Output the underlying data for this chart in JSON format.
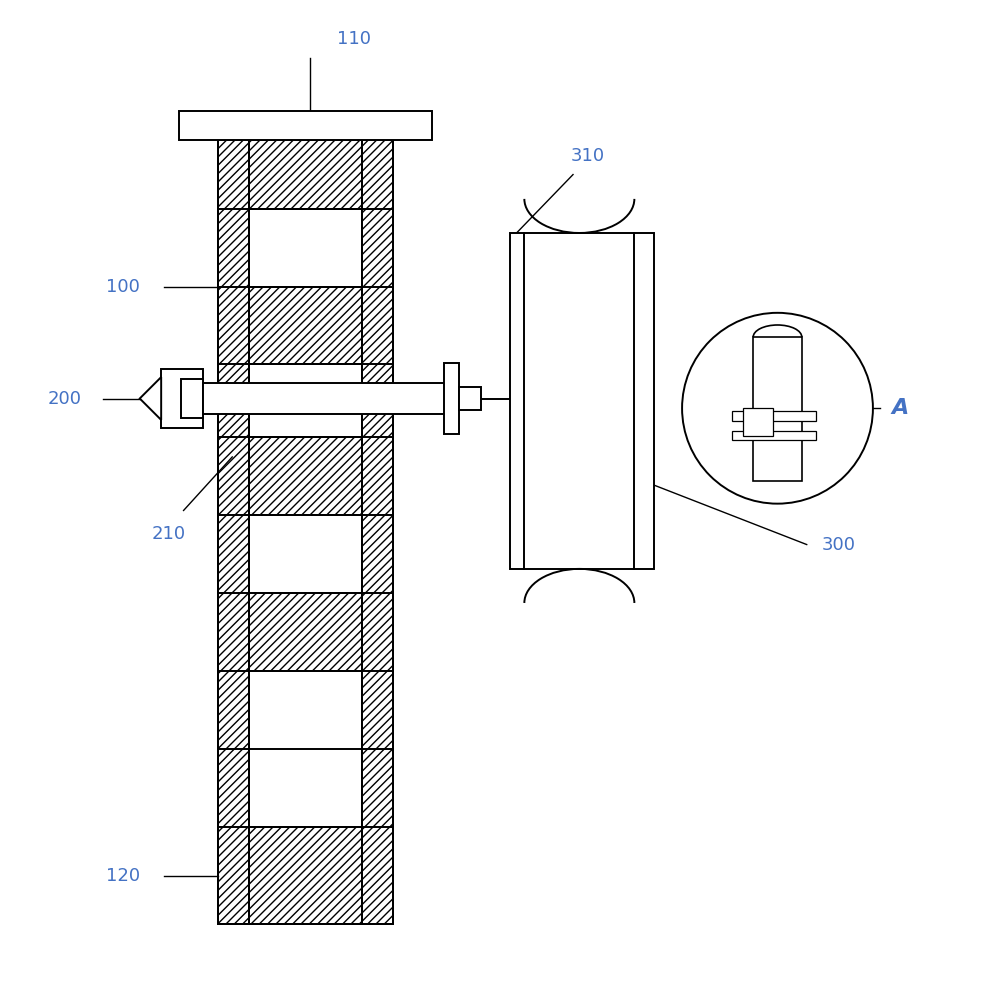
{
  "bg_color": "#ffffff",
  "line_color": "#000000",
  "label_color": "#4472c4",
  "label_100": "100",
  "label_110": "110",
  "label_120": "120",
  "label_200": "200",
  "label_210": "210",
  "label_300": "300",
  "label_310": "310",
  "label_A": "A",
  "figsize": [
    10.0,
    9.82
  ],
  "dpi": 100
}
